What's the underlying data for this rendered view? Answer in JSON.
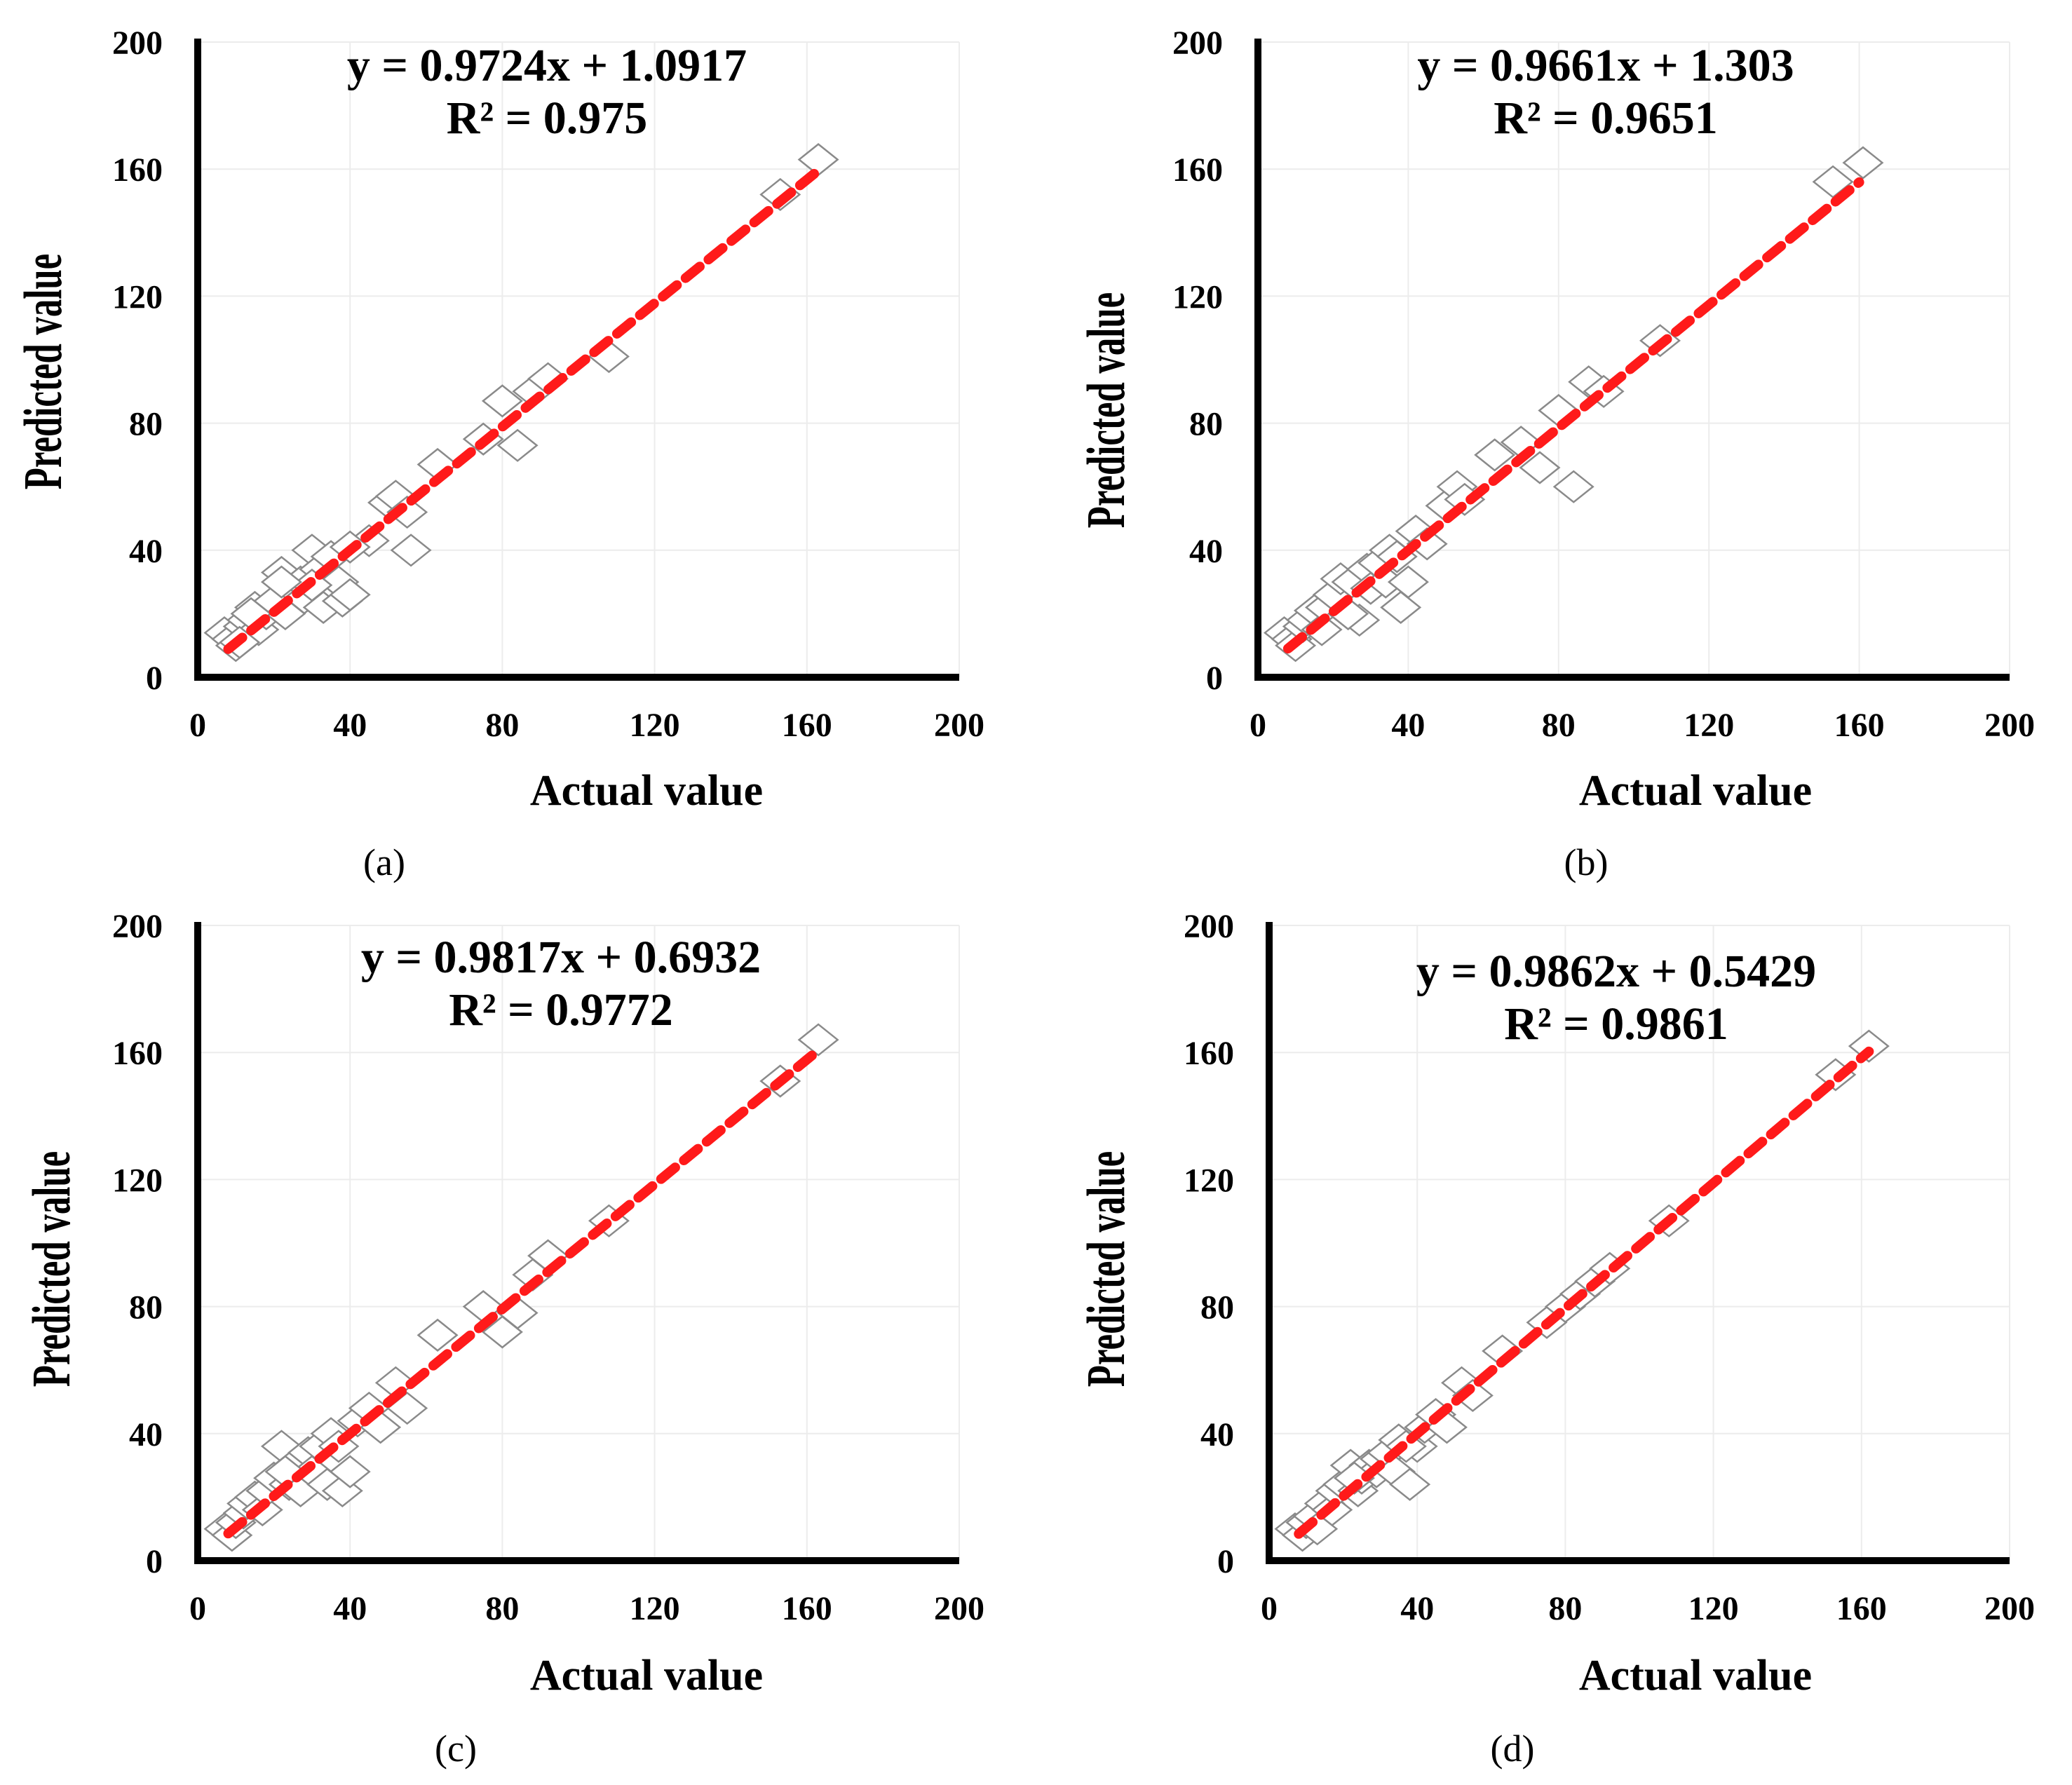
{
  "colors": {
    "trendline": "#ff1a1a",
    "marker_stroke": "#8a8a8a",
    "grid": "#ececec",
    "axis": "#000000"
  },
  "chart_data": [
    {
      "type": "scatter",
      "panel": "(a)",
      "xlabel": "Actual value",
      "ylabel": "Predicted value",
      "xlim": [
        0,
        200
      ],
      "ylim": [
        0,
        200
      ],
      "xticks": [
        0,
        40,
        80,
        120,
        160,
        200
      ],
      "yticks": [
        0,
        40,
        80,
        120,
        160,
        200
      ],
      "grid": true,
      "marker": "diamond-outline",
      "equation": "y = 0.9724x + 1.0917",
      "r2": "R² = 0.975",
      "trendline": {
        "slope": 0.9724,
        "intercept": 1.0917,
        "x_range": [
          8,
          163
        ]
      },
      "x": [
        7,
        9,
        10,
        12,
        13,
        15,
        16,
        18,
        20,
        22,
        23,
        25,
        27,
        28,
        30,
        32,
        33,
        35,
        37,
        38,
        40,
        45,
        50,
        52,
        55,
        56,
        63,
        75,
        80,
        84,
        88,
        92,
        108,
        153,
        163,
        30,
        40,
        22,
        11,
        14
      ],
      "y": [
        14,
        12,
        10,
        16,
        18,
        22,
        15,
        20,
        24,
        33,
        20,
        28,
        30,
        25,
        40,
        34,
        22,
        38,
        30,
        24,
        26,
        43,
        55,
        57,
        52,
        40,
        67,
        75,
        87,
        73,
        90,
        94,
        101,
        152,
        163,
        29,
        41,
        30,
        11,
        20
      ]
    },
    {
      "type": "scatter",
      "panel": "(b)",
      "xlabel": "Actual value",
      "ylabel": "Predicted value",
      "xlim": [
        0,
        200
      ],
      "ylim": [
        0,
        200
      ],
      "xticks": [
        0,
        40,
        80,
        120,
        160,
        200
      ],
      "yticks": [
        0,
        40,
        80,
        120,
        160,
        200
      ],
      "grid": true,
      "marker": "diamond-outline",
      "equation": "y = 0.9661x + 1.303",
      "r2": "R² = 0.9651",
      "trendline": {
        "slope": 0.9661,
        "intercept": 1.303,
        "x_range": [
          8,
          160
        ]
      },
      "x": [
        7,
        9,
        10,
        12,
        13,
        15,
        17,
        18,
        20,
        22,
        24,
        25,
        27,
        29,
        30,
        32,
        34,
        35,
        38,
        40,
        42,
        45,
        50,
        53,
        55,
        63,
        70,
        75,
        80,
        84,
        88,
        92,
        107,
        153,
        161,
        24,
        37
      ],
      "y": [
        14,
        12,
        10,
        16,
        18,
        21,
        15,
        22,
        26,
        31,
        20,
        30,
        18,
        34,
        28,
        36,
        30,
        40,
        22,
        30,
        46,
        42,
        54,
        60,
        56,
        70,
        74,
        66,
        84,
        60,
        93,
        90,
        106,
        156,
        162,
        20,
        38
      ]
    },
    {
      "type": "scatter",
      "panel": "(c)",
      "xlabel": "Actual value",
      "ylabel": "Predicted value",
      "xlim": [
        0,
        200
      ],
      "ylim": [
        0,
        200
      ],
      "xticks": [
        0,
        40,
        80,
        120,
        160,
        200
      ],
      "yticks": [
        0,
        40,
        80,
        120,
        160,
        200
      ],
      "grid": true,
      "marker": "diamond-outline",
      "equation": "y = 0.9817x + 0.6932",
      "r2": "R² = 0.9772",
      "trendline": {
        "slope": 0.9817,
        "intercept": 0.6932,
        "x_range": [
          8,
          163
        ]
      },
      "x": [
        7,
        9,
        10,
        12,
        13,
        15,
        17,
        18,
        20,
        22,
        24,
        25,
        27,
        29,
        30,
        32,
        34,
        35,
        38,
        40,
        42,
        45,
        48,
        52,
        55,
        63,
        75,
        80,
        84,
        88,
        92,
        108,
        153,
        163,
        23,
        37
      ],
      "y": [
        10,
        8,
        12,
        15,
        18,
        20,
        16,
        22,
        26,
        36,
        24,
        30,
        22,
        34,
        28,
        36,
        24,
        40,
        22,
        28,
        44,
        48,
        42,
        56,
        48,
        71,
        80,
        72,
        78,
        90,
        96,
        107,
        151,
        164,
        28,
        36
      ]
    },
    {
      "type": "scatter",
      "panel": "(d)",
      "xlabel": "Actual value",
      "ylabel": "Predicted value",
      "xlim": [
        0,
        200
      ],
      "ylim": [
        0,
        200
      ],
      "xticks": [
        0,
        40,
        80,
        120,
        160,
        200
      ],
      "yticks": [
        0,
        40,
        80,
        120,
        160,
        200
      ],
      "grid": true,
      "marker": "diamond-outline",
      "equation": "y = 0.9862x + 0.5429",
      "r2": "R² = 0.9861",
      "trendline": {
        "slope": 0.9862,
        "intercept": 0.5429,
        "x_range": [
          8,
          162
        ]
      },
      "x": [
        7,
        9,
        10,
        12,
        13,
        15,
        17,
        18,
        20,
        22,
        24,
        25,
        27,
        29,
        30,
        32,
        34,
        35,
        38,
        40,
        42,
        45,
        48,
        52,
        55,
        63,
        75,
        80,
        84,
        88,
        92,
        108,
        153,
        162,
        23,
        37
      ],
      "y": [
        10,
        8,
        12,
        14,
        10,
        18,
        16,
        22,
        24,
        30,
        22,
        26,
        30,
        28,
        32,
        34,
        28,
        38,
        24,
        36,
        42,
        46,
        42,
        56,
        52,
        66,
        75,
        80,
        84,
        88,
        92,
        107,
        153,
        162,
        26,
        36
      ]
    }
  ]
}
